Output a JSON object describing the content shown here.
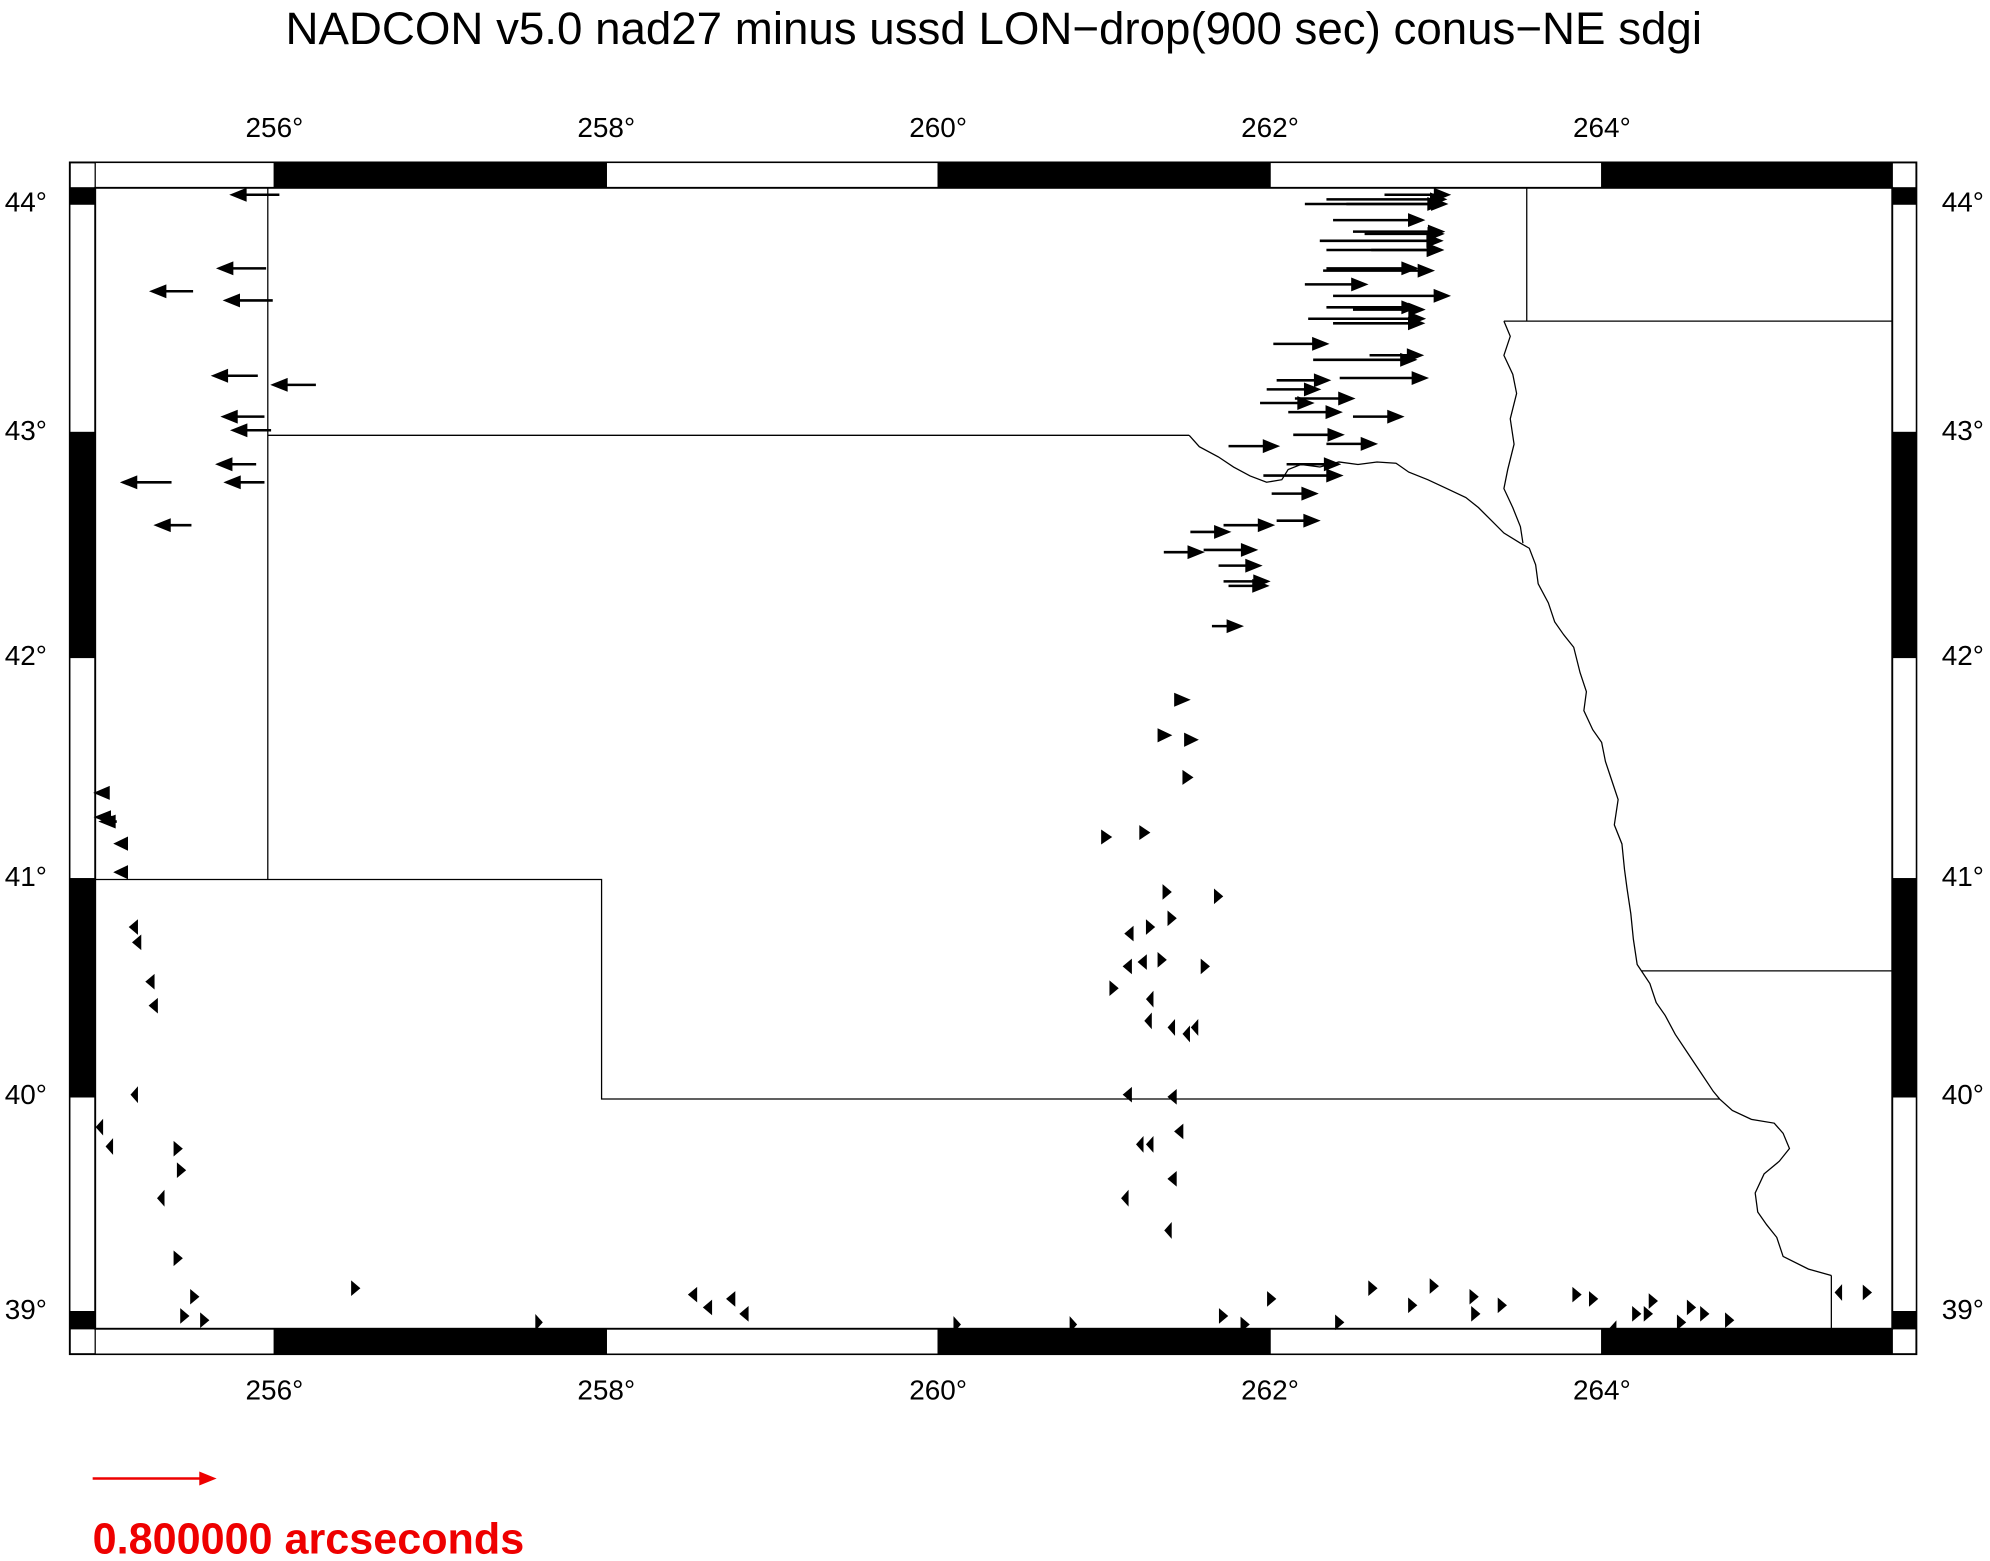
{
  "map": {
    "title": "NADCON v5.0 nad27 minus ussd LON−drop(900 sec) conus−NE sdgi",
    "lonlim": [
      254.92,
      265.75
    ],
    "latlim": [
      38.92,
      44.07
    ],
    "lon_ticks": [
      {
        "value": 256,
        "label": "256°"
      },
      {
        "value": 258,
        "label": "258°"
      },
      {
        "value": 260,
        "label": "260°"
      },
      {
        "value": 262,
        "label": "262°"
      },
      {
        "value": 264,
        "label": "264°"
      }
    ],
    "lat_ticks": [
      {
        "value": 39,
        "label": "39°"
      },
      {
        "value": 40,
        "label": "40°"
      },
      {
        "value": 41,
        "label": "41°"
      },
      {
        "value": 42,
        "label": "42°"
      },
      {
        "value": 43,
        "label": "43°"
      },
      {
        "value": 44,
        "label": "44°"
      }
    ],
    "vector_color": "#000000",
    "vectors": [
      [
        256.03,
        44.04,
        -0.31
      ],
      [
        255.95,
        43.72,
        -0.31
      ],
      [
        255.99,
        43.58,
        -0.31
      ],
      [
        255.51,
        43.62,
        -0.27
      ],
      [
        255.9,
        43.25,
        -0.29
      ],
      [
        256.25,
        43.21,
        -0.28
      ],
      [
        255.94,
        43.07,
        -0.27
      ],
      [
        255.98,
        43.01,
        -0.25
      ],
      [
        255.89,
        42.86,
        -0.25
      ],
      [
        255.94,
        42.78,
        -0.25
      ],
      [
        255.38,
        42.78,
        -0.32
      ],
      [
        255.5,
        42.59,
        -0.23
      ],
      [
        255.0,
        41.39,
        -0.08
      ],
      [
        255.04,
        41.28,
        -0.12
      ],
      [
        255.05,
        41.26,
        -0.1
      ],
      [
        255.11,
        41.16,
        -0.07
      ],
      [
        255.11,
        41.03,
        -0.07
      ],
      [
        255.17,
        40.78,
        -0.04
      ],
      [
        255.19,
        40.71,
        -0.04
      ],
      [
        255.27,
        40.53,
        -0.04
      ],
      [
        255.29,
        40.42,
        -0.04
      ],
      [
        255.17,
        40.01,
        -0.03
      ],
      [
        254.96,
        39.86,
        -0.03
      ],
      [
        255.02,
        39.77,
        -0.03
      ],
      [
        255.4,
        39.76,
        0.04
      ],
      [
        255.42,
        39.66,
        0.04
      ],
      [
        255.33,
        39.53,
        -0.03
      ],
      [
        255.4,
        39.25,
        0.04
      ],
      [
        255.5,
        39.07,
        0.04
      ],
      [
        255.44,
        38.98,
        0.04
      ],
      [
        255.56,
        38.96,
        0.04
      ],
      [
        256.47,
        39.11,
        0.04
      ],
      [
        257.58,
        38.95,
        0.03
      ],
      [
        258.54,
        39.08,
        -0.04
      ],
      [
        258.63,
        39.02,
        -0.04
      ],
      [
        258.77,
        39.06,
        -0.04
      ],
      [
        258.85,
        38.99,
        -0.04
      ],
      [
        260.1,
        38.94,
        0.03
      ],
      [
        260.8,
        38.94,
        0.03
      ],
      [
        260.99,
        41.19,
        0.05
      ],
      [
        261.22,
        41.21,
        0.05
      ],
      [
        261.33,
        41.65,
        0.07
      ],
      [
        261.49,
        41.63,
        0.07
      ],
      [
        261.43,
        41.81,
        0.08
      ],
      [
        261.48,
        41.46,
        0.05
      ],
      [
        261.36,
        40.94,
        0.04
      ],
      [
        261.26,
        40.78,
        0.04
      ],
      [
        261.17,
        40.75,
        -0.04
      ],
      [
        261.39,
        40.82,
        0.04
      ],
      [
        261.67,
        40.92,
        0.04
      ],
      [
        261.04,
        40.5,
        0.04
      ],
      [
        261.16,
        40.6,
        -0.04
      ],
      [
        261.25,
        40.62,
        -0.04
      ],
      [
        261.33,
        40.63,
        0.04
      ],
      [
        261.59,
        40.6,
        0.04
      ],
      [
        261.29,
        40.45,
        -0.03
      ],
      [
        261.28,
        40.35,
        -0.03
      ],
      [
        261.42,
        40.32,
        -0.03
      ],
      [
        261.56,
        40.32,
        -0.03
      ],
      [
        261.51,
        40.29,
        -0.03
      ],
      [
        261.16,
        40.01,
        -0.04
      ],
      [
        261.43,
        40.0,
        -0.04
      ],
      [
        261.29,
        39.78,
        -0.03
      ],
      [
        261.23,
        39.78,
        -0.03
      ],
      [
        261.47,
        39.84,
        -0.04
      ],
      [
        261.43,
        39.62,
        -0.04
      ],
      [
        261.14,
        39.53,
        -0.03
      ],
      [
        261.4,
        39.38,
        -0.03
      ],
      [
        261.7,
        38.98,
        0.04
      ],
      [
        261.83,
        38.94,
        0.04
      ],
      [
        261.99,
        39.06,
        0.04
      ],
      [
        262.4,
        38.95,
        0.04
      ],
      [
        262.6,
        39.11,
        0.04
      ],
      [
        262.84,
        39.03,
        0.04
      ],
      [
        262.97,
        39.12,
        0.04
      ],
      [
        263.21,
        39.07,
        0.04
      ],
      [
        263.22,
        38.99,
        0.04
      ],
      [
        263.38,
        39.03,
        0.04
      ],
      [
        263.83,
        39.08,
        0.04
      ],
      [
        263.93,
        39.06,
        0.04
      ],
      [
        264.08,
        38.92,
        -0.03
      ],
      [
        264.19,
        38.99,
        0.04
      ],
      [
        264.26,
        38.99,
        0.04
      ],
      [
        264.29,
        39.05,
        0.04
      ],
      [
        264.46,
        38.95,
        0.04
      ],
      [
        264.52,
        39.02,
        0.04
      ],
      [
        264.6,
        38.99,
        0.04
      ],
      [
        264.75,
        38.96,
        0.04
      ],
      [
        265.44,
        39.09,
        -0.03
      ],
      [
        265.58,
        39.09,
        0.04
      ],
      [
        262.21,
        44.0,
        0.93
      ],
      [
        262.34,
        44.02,
        0.78
      ],
      [
        262.46,
        44.0,
        0.63
      ],
      [
        262.69,
        44.04,
        0.42
      ],
      [
        262.38,
        43.93,
        0.59
      ],
      [
        262.5,
        43.88,
        0.59
      ],
      [
        262.3,
        43.84,
        0.8
      ],
      [
        262.57,
        43.87,
        0.51
      ],
      [
        262.34,
        43.8,
        0.76
      ],
      [
        262.61,
        43.8,
        0.46
      ],
      [
        262.34,
        43.72,
        0.59
      ],
      [
        262.32,
        43.71,
        0.72
      ],
      [
        262.21,
        43.65,
        0.4
      ],
      [
        262.38,
        43.6,
        0.76
      ],
      [
        262.34,
        43.55,
        0.59
      ],
      [
        262.5,
        43.54,
        0.46
      ],
      [
        262.23,
        43.5,
        0.76
      ],
      [
        262.38,
        43.48,
        0.59
      ],
      [
        262.02,
        43.39,
        0.35
      ],
      [
        262.26,
        43.32,
        0.67
      ],
      [
        262.6,
        43.34,
        0.34
      ],
      [
        262.42,
        43.24,
        0.57
      ],
      [
        262.04,
        43.23,
        0.34
      ],
      [
        261.98,
        43.19,
        0.34
      ],
      [
        262.15,
        43.15,
        0.38
      ],
      [
        261.94,
        43.13,
        0.34
      ],
      [
        262.11,
        43.09,
        0.34
      ],
      [
        262.5,
        43.07,
        0.32
      ],
      [
        262.14,
        42.99,
        0.32
      ],
      [
        262.34,
        42.95,
        0.32
      ],
      [
        261.75,
        42.94,
        0.32
      ],
      [
        262.1,
        42.86,
        0.34
      ],
      [
        261.96,
        42.81,
        0.51
      ],
      [
        262.01,
        42.73,
        0.29
      ],
      [
        261.72,
        42.59,
        0.32
      ],
      [
        262.04,
        42.61,
        0.27
      ],
      [
        261.52,
        42.56,
        0.25
      ],
      [
        261.6,
        42.48,
        0.34
      ],
      [
        261.36,
        42.47,
        0.25
      ],
      [
        261.69,
        42.41,
        0.27
      ],
      [
        261.72,
        42.34,
        0.29
      ],
      [
        261.75,
        42.32,
        0.25
      ],
      [
        261.65,
        42.14,
        0.19
      ]
    ],
    "scale": {
      "value": 0.8,
      "label": "0.800000 arcseconds",
      "color": "#ee0000"
    }
  }
}
